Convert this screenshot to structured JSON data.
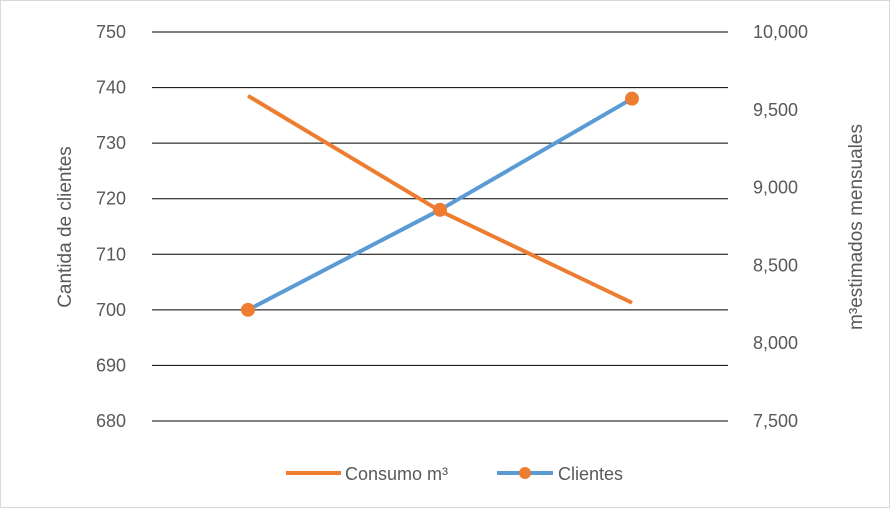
{
  "chart_data": {
    "type": "line",
    "title": "",
    "categories": [
      "",
      "",
      ""
    ],
    "left_axis": {
      "label": "Cantida de clientes",
      "ylim": [
        680,
        750
      ],
      "ticks": [
        "680",
        "690",
        "700",
        "710",
        "720",
        "730",
        "740",
        "750"
      ]
    },
    "right_axis": {
      "label": "m³estimados mensuales",
      "ylim": [
        7500,
        10000
      ],
      "ticks": [
        "7,500",
        "8,000",
        "8,500",
        "9,000",
        "9,500",
        "10,000"
      ]
    },
    "series": [
      {
        "name": "Consumo m³",
        "axis": "right",
        "values": [
          9590,
          8850,
          8260
        ],
        "color": "#ED7D31",
        "markers": false
      },
      {
        "name": "Clientes",
        "axis": "left",
        "values": [
          700,
          718,
          738
        ],
        "color": "#5B9BD5",
        "marker_color": "#ED7D31",
        "markers": true
      }
    ],
    "grid": true,
    "legend": "bottom"
  }
}
